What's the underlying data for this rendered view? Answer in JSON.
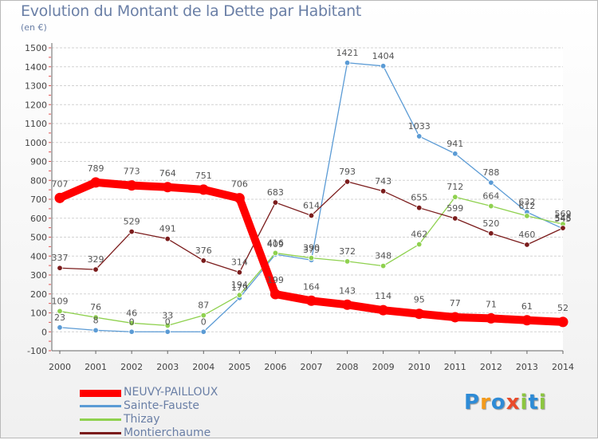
{
  "title": "Evolution du Montant de la Dette par Habitant",
  "subtitle": "(en €)",
  "logo": {
    "letters": [
      "P",
      "r",
      "o",
      "x",
      "i",
      "t",
      "i"
    ],
    "colors": [
      "#2e8bd6",
      "#f39a1b",
      "#2e8bd6",
      "#e94b2b",
      "#8cc63f",
      "#2e8bd6",
      "#8cc63f"
    ]
  },
  "chart_data": {
    "type": "line",
    "x": [
      "2000",
      "2001",
      "2002",
      "2003",
      "2004",
      "2005",
      "2006",
      "2007",
      "2008",
      "2009",
      "2010",
      "2011",
      "2012",
      "2013",
      "2014"
    ],
    "yticks": [
      "-100",
      "0",
      "100",
      "200",
      "300",
      "400",
      "500",
      "600",
      "700",
      "800",
      "900",
      "1000",
      "1100",
      "1200",
      "1300",
      "1400",
      "1500"
    ],
    "ylim": [
      -100,
      1500
    ],
    "grid": "horizontal",
    "legend_position": "bottom-left",
    "series": [
      {
        "name": "NEUVY-PAILLOUX",
        "color": "#ff0000",
        "highlight": true,
        "values": [
          707,
          789,
          773,
          764,
          751,
          706,
          199,
          164,
          143,
          114,
          95,
          77,
          71,
          61,
          52
        ],
        "labels": [
          "707",
          "789",
          "773",
          "764",
          "751",
          "706",
          "199",
          "164",
          "143",
          "114",
          "95",
          "77",
          "71",
          "61",
          "52"
        ]
      },
      {
        "name": "Sainte-Fauste",
        "color": "#5b9bd5",
        "values": [
          23,
          8,
          0,
          0,
          0,
          179,
          409,
          379,
          1421,
          1404,
          1033,
          941,
          788,
          632,
          545
        ],
        "labels": [
          "23",
          "8",
          "0",
          "0",
          "0",
          "179",
          "409",
          "379",
          "1421",
          "1404",
          "1033",
          "941",
          "788",
          "632",
          "545"
        ]
      },
      {
        "name": "Thizay",
        "color": "#8fd14f",
        "values": [
          109,
          76,
          46,
          33,
          87,
          194,
          416,
          390,
          372,
          348,
          462,
          712,
          664,
          612,
          569
        ],
        "labels": [
          "109",
          "76",
          "46",
          "33",
          "87",
          "194",
          "416",
          "390",
          "372",
          "348",
          "462",
          "712",
          "664",
          "612",
          "569"
        ]
      },
      {
        "name": "Montierchaume",
        "color": "#7b1c1c",
        "values": [
          337,
          329,
          529,
          491,
          376,
          314,
          683,
          614,
          793,
          743,
          655,
          599,
          520,
          460,
          548
        ],
        "labels": [
          "337",
          "329",
          "529",
          "491",
          "376",
          "314",
          "683",
          "614",
          "793",
          "743",
          "655",
          "599",
          "520",
          "460",
          "548"
        ]
      }
    ]
  }
}
